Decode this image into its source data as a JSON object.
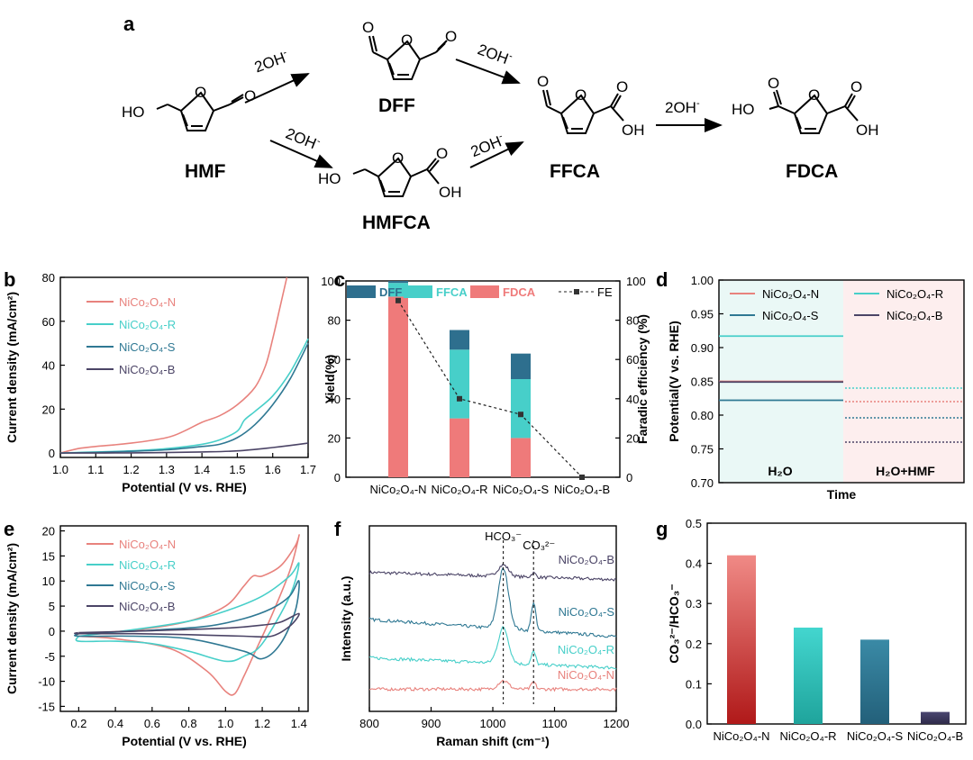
{
  "colors": {
    "N": "#e8827d",
    "R": "#47cfc9",
    "S": "#2f7893",
    "B": "#4b4466",
    "dff": "#2e6f8e",
    "ffca": "#47cfc9",
    "fdca": "#ef7a7a",
    "h2o_bg": "#eaf8f6",
    "hmf_bg": "#fdeeee"
  },
  "panel_labels": [
    "a",
    "b",
    "c",
    "d",
    "e",
    "f",
    "g"
  ],
  "scheme": {
    "compounds": {
      "hmf": "HMF",
      "dff": "DFF",
      "hmfca": "HMFCA",
      "ffca": "FFCA",
      "fdca": "FDCA"
    },
    "reagent": "2OH",
    "reagent_sup": "-",
    "atoms": {
      "ho": "HO",
      "oh": "OH",
      "o": "O"
    }
  },
  "chart_data": [
    {
      "id": "b",
      "type": "line",
      "xlabel": "Potential (V vs. RHE)",
      "ylabel": "Current density (mA/cm²)",
      "xlim": [
        1.0,
        1.7
      ],
      "ylim": [
        -2,
        80
      ],
      "xticks": [
        "1.0",
        "1.1",
        "1.2",
        "1.3",
        "1.4",
        "1.5",
        "1.6",
        "1.7"
      ],
      "yticks": [
        "0",
        "20",
        "40",
        "60",
        "80"
      ],
      "series": [
        {
          "name": "NiCo₂O₄-N",
          "key": "N",
          "x": [
            1.0,
            1.05,
            1.1,
            1.2,
            1.3,
            1.35,
            1.4,
            1.45,
            1.5,
            1.55,
            1.58,
            1.6,
            1.62,
            1.64
          ],
          "y": [
            0,
            2,
            3,
            4.5,
            7,
            10,
            14,
            17,
            22,
            30,
            40,
            52,
            66,
            80
          ]
        },
        {
          "name": "NiCo₂O₄-R",
          "key": "R",
          "x": [
            1.0,
            1.1,
            1.2,
            1.3,
            1.4,
            1.45,
            1.5,
            1.52,
            1.55,
            1.6,
            1.65,
            1.7
          ],
          "y": [
            0,
            0.5,
            1,
            2,
            4,
            6,
            10,
            15,
            19,
            26,
            37,
            52
          ]
        },
        {
          "name": "NiCo₂O₄-S",
          "key": "S",
          "x": [
            1.0,
            1.1,
            1.2,
            1.3,
            1.4,
            1.45,
            1.5,
            1.55,
            1.6,
            1.65,
            1.7
          ],
          "y": [
            0,
            0.3,
            0.8,
            1.5,
            3,
            4,
            7,
            13,
            22,
            34,
            50
          ]
        },
        {
          "name": "NiCo₂O₄-B",
          "key": "B",
          "x": [
            1.0,
            1.2,
            1.4,
            1.5,
            1.6,
            1.7
          ],
          "y": [
            0,
            0.1,
            0.5,
            1,
            2.5,
            4.5
          ]
        }
      ]
    },
    {
      "id": "c",
      "type": "bar",
      "ylabel": "Yield(%)",
      "y2label": "Faradic efficiency (%)",
      "categories": [
        "NiCo₂O₄-N",
        "NiCo₂O₄-R",
        "NiCo₂O₄-S",
        "NiCo₂O₄-B"
      ],
      "ylim": [
        0,
        100
      ],
      "y2lim": [
        0,
        100
      ],
      "yticks": [
        "0",
        "20",
        "40",
        "60",
        "80",
        "100"
      ],
      "series": [
        {
          "name": "FDCA",
          "key": "fdca",
          "values": [
            92,
            30,
            20,
            0
          ]
        },
        {
          "name": "FFCA",
          "key": "ffca",
          "values": [
            7,
            35,
            30,
            0
          ]
        },
        {
          "name": "DFF",
          "key": "dff",
          "values": [
            1,
            10,
            13,
            0
          ]
        }
      ],
      "fe": {
        "name": "FE",
        "values": [
          90,
          40,
          32,
          0
        ]
      }
    },
    {
      "id": "d",
      "type": "line",
      "xlabel": "Time",
      "ylabel": "Potential(V vs. RHE)",
      "ylim": [
        0.7,
        1.0
      ],
      "yticks": [
        "0.70",
        "0.75",
        "0.80",
        "0.85",
        "0.90",
        "0.95",
        "1.00"
      ],
      "region_labels": [
        "H₂O",
        "H₂O+HMF"
      ],
      "series": [
        {
          "name": "NiCo₂O₄-N",
          "key": "N",
          "h2o": 0.85,
          "hmf": 0.82
        },
        {
          "name": "NiCo₂O₄-R",
          "key": "R",
          "h2o": 0.917,
          "hmf": 0.84
        },
        {
          "name": "NiCo₂O₄-S",
          "key": "S",
          "h2o": 0.822,
          "hmf": 0.796
        },
        {
          "name": "NiCo₂O₄-B",
          "key": "B",
          "h2o": 0.849,
          "hmf": 0.76
        }
      ]
    },
    {
      "id": "e",
      "type": "line",
      "xlabel": "Potential (V vs. RHE)",
      "ylabel": "Current density (mA/cm²)",
      "xlim": [
        0.1,
        1.45
      ],
      "ylim": [
        -16,
        21
      ],
      "xticks": [
        "0.2",
        "0.4",
        "0.6",
        "0.8",
        "1.0",
        "1.2",
        "1.4"
      ],
      "yticks": [
        "-15",
        "-10",
        "-5",
        "0",
        "5",
        "10",
        "15",
        "20"
      ],
      "series": [
        {
          "name": "NiCo₂O₄-N",
          "key": "N",
          "x": [
            0.2,
            0.5,
            0.8,
            1.0,
            1.1,
            1.15,
            1.2,
            1.3,
            1.38,
            1.4,
            1.35,
            1.25,
            1.15,
            1.1,
            1.05,
            1.0,
            0.9,
            0.7,
            0.4,
            0.2
          ],
          "y": [
            -0.5,
            0.2,
            2,
            5,
            9,
            11,
            11,
            13,
            17,
            19,
            12,
            3,
            -5,
            -9,
            -12.5,
            -12,
            -8,
            -3.5,
            -1.5,
            -1
          ]
        },
        {
          "name": "NiCo₂O₄-R",
          "key": "R",
          "x": [
            0.2,
            0.5,
            0.8,
            1.0,
            1.2,
            1.35,
            1.4,
            1.35,
            1.2,
            1.1,
            1.0,
            0.8,
            0.6,
            0.4,
            0.2
          ],
          "y": [
            -1,
            0.3,
            2,
            4,
            7,
            11,
            13.5,
            7,
            -2.5,
            -5,
            -6,
            -4,
            -2.5,
            -2,
            -2
          ]
        },
        {
          "name": "NiCo₂O₄-S",
          "key": "S",
          "x": [
            0.2,
            0.6,
            0.9,
            1.1,
            1.25,
            1.35,
            1.4,
            1.38,
            1.3,
            1.2,
            1.1,
            0.8,
            0.5,
            0.2
          ],
          "y": [
            -0.5,
            0.2,
            1,
            2.5,
            4.5,
            7,
            10,
            4,
            -2.5,
            -5.5,
            -4,
            -1.5,
            -1,
            -1
          ]
        },
        {
          "name": "NiCo₂O₄-B",
          "key": "B",
          "x": [
            0.2,
            0.6,
            1.0,
            1.2,
            1.3,
            1.4,
            1.35,
            1.25,
            1.1,
            0.8,
            0.5,
            0.2
          ],
          "y": [
            -0.3,
            0.1,
            0.6,
            1.2,
            1.8,
            3.5,
            1,
            -1,
            -1,
            -0.7,
            -0.5,
            -0.5
          ]
        }
      ]
    },
    {
      "id": "f",
      "type": "line",
      "xlabel": "Raman shift (cm⁻¹)",
      "ylabel": "Intensity (a.u.)",
      "xlim": [
        800,
        1200
      ],
      "xticks": [
        "800",
        "900",
        "1000",
        "1100",
        "1200"
      ],
      "peaks": [
        {
          "label": "HCO₃⁻",
          "x": 1017
        },
        {
          "label": "CO₃²⁻",
          "x": 1066
        }
      ],
      "series": [
        {
          "name": "NiCo₂O₄-B",
          "key": "B",
          "baseline": 0.9,
          "tilt": -0.05,
          "p1": 0.08,
          "p2": 0.03
        },
        {
          "name": "NiCo₂O₄-S",
          "key": "S",
          "baseline": 0.57,
          "tilt": -0.12,
          "p1": 0.42,
          "p2": 0.2
        },
        {
          "name": "NiCo₂O₄-R",
          "key": "R",
          "baseline": 0.3,
          "tilt": -0.07,
          "p1": 0.25,
          "p2": 0.09
        },
        {
          "name": "NiCo₂O₄-N",
          "key": "N",
          "baseline": 0.08,
          "tilt": 0.0,
          "p1": 0.06,
          "p2": 0.05
        }
      ]
    },
    {
      "id": "g",
      "type": "bar",
      "ylabel": "CO₃²⁻/HCO₃⁻",
      "categories": [
        "NiCo₂O₄-N",
        "NiCo₂O₄-R",
        "NiCo₂O₄-S",
        "NiCo₂O₄-B"
      ],
      "values": [
        0.42,
        0.24,
        0.21,
        0.03
      ],
      "ylim": [
        0,
        0.5
      ],
      "yticks": [
        "0.0",
        "0.1",
        "0.2",
        "0.3",
        "0.4",
        "0.5"
      ]
    }
  ]
}
